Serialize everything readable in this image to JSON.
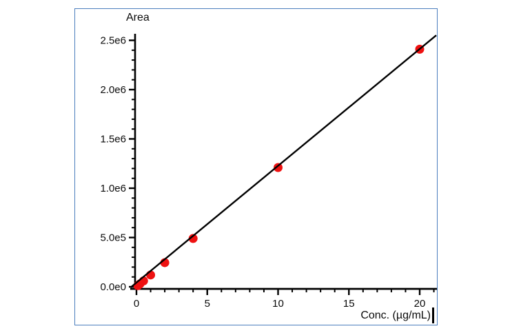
{
  "frame": {
    "border_color": "#4a7dbd",
    "background": "#ffffff"
  },
  "chart_data": {
    "type": "scatter",
    "title": "",
    "ylabel": "Area",
    "xlabel": "Conc. (µg/mL)",
    "x_axis": {
      "min": 0,
      "max": 21.3,
      "major_tick_values": [
        0,
        5,
        10,
        15,
        20
      ],
      "major_tick_labels": [
        "0",
        "5",
        "10",
        "15",
        "20"
      ],
      "minor_tick_step": 1
    },
    "y_axis": {
      "min": 0,
      "max": 2570000,
      "major_tick_values": [
        0,
        500000,
        1000000,
        1500000,
        2000000,
        2500000
      ],
      "major_tick_labels": [
        "0.0e0",
        "5.0e5",
        "1.0e6",
        "1.5e6",
        "2.0e6",
        "2.5e6"
      ],
      "minor_tick_step": 100000
    },
    "points": [
      [
        0.1,
        12000
      ],
      [
        0.25,
        30000
      ],
      [
        0.5,
        60000
      ],
      [
        1,
        120000
      ],
      [
        2,
        245000
      ],
      [
        4,
        490000
      ],
      [
        10,
        1210000
      ],
      [
        20,
        2410000
      ]
    ],
    "fit_line": {
      "slope": 120500,
      "intercept": 0,
      "x_start": -0.42,
      "x_end": 21.17
    },
    "marker_color": "#ee1111",
    "fit_line_color": "#000000",
    "axis_color": "#000000",
    "grid": false,
    "legend": null,
    "text_cursor_visible": true
  }
}
